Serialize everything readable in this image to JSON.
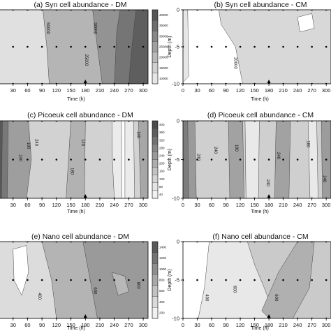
{
  "chart_data": [
    {
      "type": "contour",
      "panel_label": "(a)",
      "title": "Syn cell abundance - DM",
      "xlabel": "Time (h)",
      "ylabel": "",
      "xticks": [
        "0",
        "30",
        "60",
        "90",
        "120",
        "150",
        "180",
        "210",
        "240",
        "270",
        "300"
      ],
      "yticks": [],
      "xlim": [
        0,
        310
      ],
      "ylim": [
        -10,
        0
      ],
      "contour_labels": [
        "50000",
        "30000",
        "25000"
      ],
      "colorbar": {
        "ticks": [
          "40000",
          "35000",
          "30000",
          "25000",
          "20000",
          "15000",
          "10000"
        ],
        "colors": [
          "#555555",
          "#6e6e6e",
          "#878787",
          "#a0a0a0",
          "#b9b9b9",
          "#d0d0d0",
          "#e6e6e6"
        ]
      },
      "sample_times": [
        0,
        30,
        60,
        90,
        120,
        150,
        180,
        210,
        240,
        270,
        300
      ],
      "sample_depths": [
        0,
        -5,
        -10
      ],
      "marker_time": 180,
      "legend": "none",
      "grid": false
    },
    {
      "type": "contour",
      "panel_label": "(b)",
      "title": "Syn cell abundance - CM",
      "xlabel": "Time (h)",
      "ylabel": "Depth (m)",
      "xticks": [
        "0",
        "30",
        "60",
        "90",
        "120",
        "150",
        "180",
        "210",
        "240",
        "270",
        "300"
      ],
      "yticks": [
        "0",
        "-5",
        "-10"
      ],
      "xlim": [
        0,
        310
      ],
      "ylim": [
        -10,
        0
      ],
      "contour_labels": [
        "20000"
      ],
      "colorbar": null,
      "sample_times": [
        0,
        30,
        60,
        90,
        120,
        150,
        180,
        210,
        240,
        270,
        300
      ],
      "sample_depths": [
        0,
        -5,
        -10
      ],
      "marker_time": 180,
      "legend": "none",
      "grid": false
    },
    {
      "type": "contour",
      "panel_label": "(c)",
      "title": "Picoeuk cell abundance - DM",
      "xlabel": "Time (h)",
      "ylabel": "",
      "xticks": [
        "30",
        "60",
        "90",
        "120",
        "150",
        "180",
        "210",
        "240",
        "270",
        "300"
      ],
      "yticks": [],
      "xlim": [
        0,
        310
      ],
      "ylim": [
        -10,
        0
      ],
      "contour_labels": [
        "240",
        "180",
        "240",
        "180",
        "120",
        "180"
      ],
      "colorbar": {
        "ticks": [
          "400",
          "360",
          "320",
          "280",
          "240",
          "200",
          "160",
          "120",
          "80",
          "40"
        ],
        "colors": [
          "#4a4a4a",
          "#5e5e5e",
          "#727272",
          "#868686",
          "#9a9a9a",
          "#aeaeae",
          "#c2c2c2",
          "#d4d4d4",
          "#e4e4e4",
          "#f2f2f2"
        ]
      },
      "sample_times": [
        0,
        30,
        60,
        90,
        120,
        150,
        180,
        210,
        240,
        270,
        300
      ],
      "sample_depths": [
        0,
        -5,
        -10
      ],
      "marker_time": 180,
      "legend": "none",
      "grid": false
    },
    {
      "type": "contour",
      "panel_label": "(d)",
      "title": "Picoeuk cell abundance - CM",
      "xlabel": "Time (h)",
      "ylabel": "Depth (m)",
      "xticks": [
        "0",
        "30",
        "60",
        "90",
        "120",
        "150",
        "180",
        "210",
        "240",
        "270",
        "300"
      ],
      "yticks": [
        "0",
        "-5",
        "-10"
      ],
      "xlim": [
        0,
        310
      ],
      "ylim": [
        -10,
        0
      ],
      "contour_labels": [
        "240",
        "240",
        "180",
        "240",
        "240",
        "180",
        "240"
      ],
      "colorbar": null,
      "sample_times": [
        0,
        30,
        60,
        90,
        120,
        150,
        180,
        210,
        240,
        270,
        300
      ],
      "sample_depths": [
        0,
        -5,
        -10
      ],
      "marker_time": 180,
      "legend": "none",
      "grid": false
    },
    {
      "type": "contour",
      "panel_label": "(e)",
      "title": "Nano cell abundance - DM",
      "xlabel": "Time (h)",
      "ylabel": "",
      "xticks": [
        "30",
        "60",
        "90",
        "120",
        "150",
        "180",
        "210",
        "240",
        "270",
        "300"
      ],
      "yticks": [],
      "xlim": [
        0,
        310
      ],
      "ylim": [
        -10,
        0
      ],
      "contour_labels": [
        "400",
        "600",
        "800"
      ],
      "colorbar": {
        "ticks": [
          "1400",
          "1200",
          "1000",
          "800",
          "600",
          "400",
          "200"
        ],
        "colors": [
          "#5a5a5a",
          "#747474",
          "#8e8e8e",
          "#a8a8a8",
          "#c2c2c2",
          "#dadada",
          "#f0f0f0"
        ]
      },
      "sample_times": [
        0,
        30,
        60,
        90,
        120,
        150,
        180,
        210,
        240,
        270,
        300
      ],
      "sample_depths": [
        0,
        -5,
        -10
      ],
      "marker_time": 180,
      "legend": "none",
      "grid": false
    },
    {
      "type": "contour",
      "panel_label": "(f)",
      "title": "Nano cell abundance - CM",
      "xlabel": "Time (h)",
      "ylabel": "Depth (m)",
      "xticks": [
        "0",
        "30",
        "60",
        "90",
        "120",
        "150",
        "180",
        "210",
        "240",
        "270",
        "300"
      ],
      "yticks": [
        "0",
        "-5",
        "-10"
      ],
      "xlim": [
        0,
        310
      ],
      "ylim": [
        -10,
        0
      ],
      "contour_labels": [
        "400",
        "600",
        "600"
      ],
      "colorbar": null,
      "sample_times": [
        0,
        30,
        60,
        90,
        120,
        150,
        180,
        210,
        240,
        270,
        300
      ],
      "sample_depths": [
        0,
        -5,
        -10
      ],
      "marker_time": 180,
      "legend": "none",
      "grid": false
    }
  ]
}
